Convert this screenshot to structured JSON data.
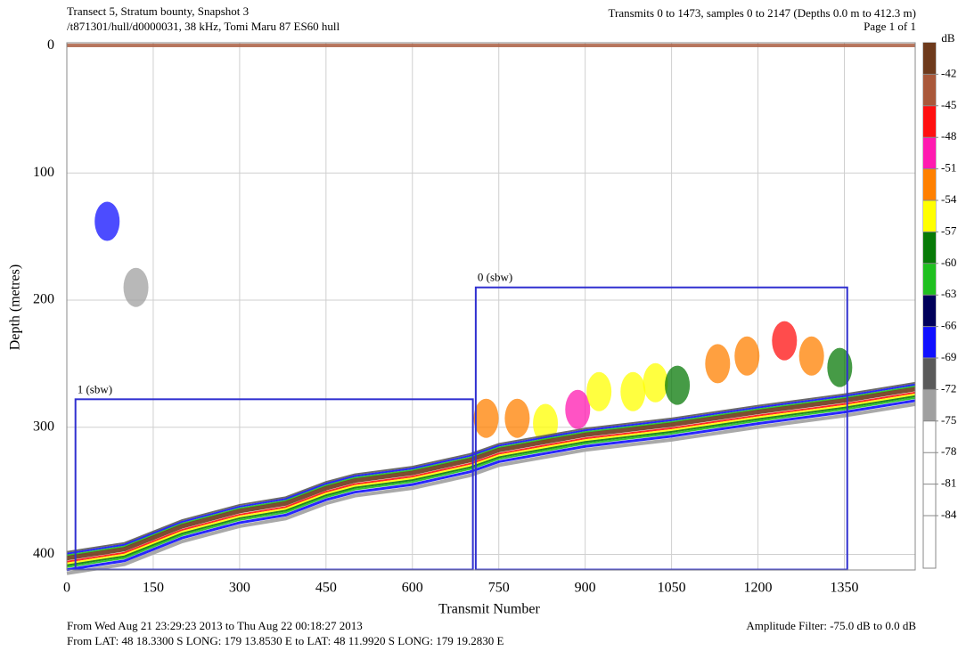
{
  "chart_data": {
    "type": "echogram",
    "title": "Transect 5, Stratum bounty, Snapshot 3",
    "subtitle": "/t871301/hull/d0000031, 38 kHz, Tomi Maru 87 ES60 hull",
    "header_right": "Transmits 0 to 1473, samples 0 to 2147 (Depths 0.0 m to 412.3 m)",
    "page": "Page 1 of 1",
    "xlabel": "Transmit Number",
    "ylabel": "Depth (metres)",
    "xlim": [
      0,
      1473
    ],
    "ylim": [
      -2.5,
      412.3
    ],
    "xticks": [
      0,
      150,
      300,
      450,
      600,
      750,
      900,
      1050,
      1200,
      1350
    ],
    "yticks": [
      0,
      100,
      200,
      300,
      400
    ],
    "grid": true,
    "colorbar": {
      "label": "dB",
      "lim": [
        -39,
        -89
      ],
      "step": 3,
      "colors": [
        "#6e3a1c",
        "#a9583a",
        "#ff1010",
        "#ff1ab0",
        "#ff8000",
        "#ffff00",
        "#087a08",
        "#20c020",
        "#00005a",
        "#1010ff",
        "#5a5a5a",
        "#a0a0a0"
      ],
      "ticks": [
        -42,
        -45,
        -48,
        -51,
        -54,
        -57,
        -60,
        -63,
        -66,
        -69,
        -72,
        -75,
        -78,
        -81,
        -84
      ]
    },
    "bottom": {
      "x": [
        0,
        100,
        200,
        300,
        380,
        450,
        500,
        600,
        700,
        750,
        900,
        1050,
        1200,
        1350,
        1473
      ],
      "depth": [
        403,
        396,
        378,
        366,
        360,
        348,
        342,
        336,
        326,
        318,
        306,
        298,
        288,
        279,
        270
      ]
    },
    "schools": {
      "x": [
        70,
        120,
        728,
        782,
        831,
        887,
        924,
        983,
        1022,
        1060,
        1130,
        1181,
        1246,
        1293,
        1342
      ],
      "depth": [
        138,
        190,
        293,
        293,
        297,
        286,
        272,
        272,
        265,
        267,
        250,
        244,
        232,
        244,
        253
      ],
      "db": [
        -67,
        -73,
        -52,
        -52,
        -55,
        -48,
        -54,
        -55,
        -54,
        -57,
        -52,
        -51,
        -46,
        -53,
        -57
      ]
    },
    "regions": [
      {
        "label": "0 (sbw)",
        "x": [
          710,
          1355
        ],
        "depth": [
          190,
          412
        ]
      },
      {
        "label": "1 (sbw)",
        "x": [
          15,
          705
        ],
        "depth": [
          278,
          412
        ]
      }
    ],
    "footer_time": "From Wed Aug 21 23:29:23 2013 to Thu Aug 22 00:18:27 2013",
    "footer_position": "From LAT:  48 18.3300 S    LONG: 179 13.8530 E to LAT:  48 11.9920 S    LONG: 179 19.2830 E",
    "amplitude_filter": "Amplitude Filter: -75.0 dB to   0.0 dB"
  }
}
